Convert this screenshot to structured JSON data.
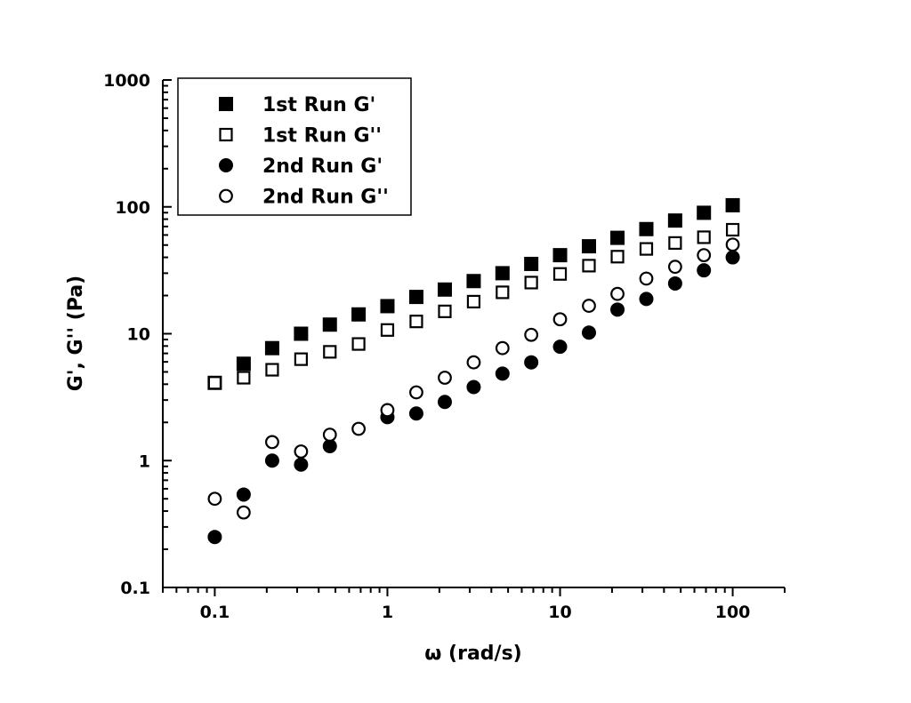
{
  "chart_data": {
    "type": "scatter",
    "title": "",
    "xlabel": "ω (rad/s)",
    "ylabel": "G', G'' (Pa)",
    "x_scale": "log",
    "y_scale": "log",
    "xlim": [
      0.05,
      200
    ],
    "ylim": [
      0.1,
      1000
    ],
    "grid": false,
    "legend_position": "top-left",
    "x_ticks": [
      {
        "value": 0.1,
        "label": "0.1"
      },
      {
        "value": 1,
        "label": "1"
      },
      {
        "value": 10,
        "label": "10"
      },
      {
        "value": 100,
        "label": "100"
      }
    ],
    "y_ticks": [
      {
        "value": 0.1,
        "label": "0.1"
      },
      {
        "value": 1,
        "label": "1"
      },
      {
        "value": 10,
        "label": "10"
      },
      {
        "value": 100,
        "label": "100"
      },
      {
        "value": 1000,
        "label": "1000"
      }
    ],
    "series": [
      {
        "name": "1st Run G'",
        "marker": "filled-square",
        "color": "#000000",
        "x": [
          0.1,
          0.147,
          0.215,
          0.316,
          0.464,
          0.681,
          1,
          1.47,
          2.15,
          3.16,
          4.64,
          6.81,
          10,
          14.7,
          21.5,
          31.6,
          46.4,
          68.1,
          100
        ],
        "y": [
          4.1,
          5.8,
          7.7,
          10.0,
          11.8,
          14.2,
          16.5,
          19.5,
          22.3,
          26.0,
          30.0,
          35.5,
          41.6,
          48.9,
          57.0,
          66.8,
          78.0,
          89.8,
          103
        ]
      },
      {
        "name": "1st Run G''",
        "marker": "open-square",
        "color": "#000000",
        "x": [
          0.1,
          0.147,
          0.215,
          0.316,
          0.464,
          0.681,
          1,
          1.47,
          2.15,
          3.16,
          4.64,
          6.81,
          10,
          14.7,
          21.5,
          31.6,
          46.4,
          68.1,
          100
        ],
        "y": [
          4.1,
          4.5,
          5.2,
          6.3,
          7.2,
          8.3,
          10.7,
          12.5,
          15.0,
          17.9,
          21.2,
          25.3,
          29.6,
          34.4,
          40.5,
          46.6,
          51.9,
          57.6,
          66.0
        ]
      },
      {
        "name": "2nd Run G'",
        "marker": "filled-circle",
        "color": "#000000",
        "x": [
          0.1,
          0.147,
          0.215,
          0.316,
          0.464,
          1,
          1.47,
          2.15,
          3.16,
          4.64,
          6.81,
          10,
          14.7,
          21.5,
          31.6,
          46.4,
          68.1,
          100
        ],
        "y": [
          0.25,
          0.54,
          1.0,
          0.93,
          1.3,
          2.2,
          2.35,
          2.9,
          3.8,
          4.85,
          5.95,
          7.9,
          10.2,
          15.5,
          18.8,
          24.9,
          31.6,
          40.0
        ]
      },
      {
        "name": "2nd Run G''",
        "marker": "open-circle",
        "color": "#000000",
        "x": [
          0.1,
          0.147,
          0.215,
          0.316,
          0.464,
          0.681,
          1,
          1.47,
          2.15,
          3.16,
          4.64,
          6.81,
          10,
          14.7,
          21.5,
          31.6,
          46.4,
          68.1,
          100
        ],
        "y": [
          0.5,
          0.39,
          1.4,
          1.18,
          1.6,
          1.78,
          2.5,
          3.45,
          4.5,
          5.95,
          7.7,
          9.8,
          13.0,
          16.6,
          20.6,
          27.2,
          33.7,
          41.6,
          50.4
        ]
      }
    ]
  }
}
